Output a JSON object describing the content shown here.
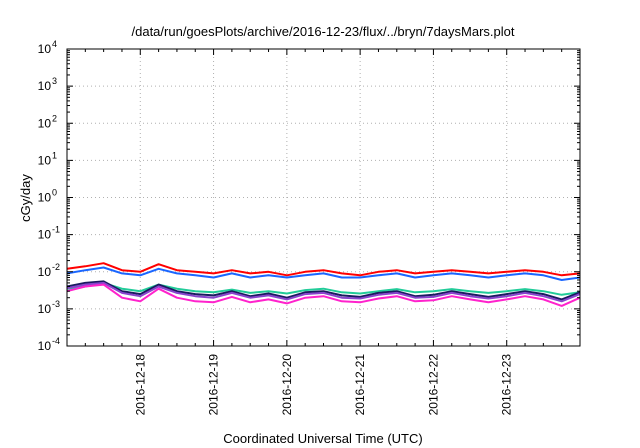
{
  "chart_data": {
    "type": "line",
    "title": "/data/run/goesPlots/archive/2016-12-23/flux/../bryn/7daysMars.plot",
    "xlabel": "Coordinated Universal Time (UTC)",
    "ylabel": "cGy/day",
    "yscale": "log",
    "ylim": [
      0.0001,
      10000
    ],
    "y_ticks": [
      {
        "base": "10",
        "exp": "4"
      },
      {
        "base": "10",
        "exp": "3"
      },
      {
        "base": "10",
        "exp": "2"
      },
      {
        "base": "10",
        "exp": "1"
      },
      {
        "base": "10",
        "exp": "0"
      },
      {
        "base": "10",
        "exp": "-1"
      },
      {
        "base": "10",
        "exp": "-2"
      },
      {
        "base": "10",
        "exp": "-3"
      },
      {
        "base": "10",
        "exp": "-4"
      }
    ],
    "xlim": [
      "2016-12-17 00:00",
      "2016-12-24 00:00"
    ],
    "x_ticks": [
      "2016-12-18",
      "2016-12-19",
      "2016-12-20",
      "2016-12-21",
      "2016-12-22",
      "2016-12-23"
    ],
    "grid": true,
    "legend": "none",
    "x": [
      "2016-12-17 00:00",
      "2016-12-17 06:00",
      "2016-12-17 12:00",
      "2016-12-17 18:00",
      "2016-12-18 00:00",
      "2016-12-18 06:00",
      "2016-12-18 12:00",
      "2016-12-18 18:00",
      "2016-12-19 00:00",
      "2016-12-19 06:00",
      "2016-12-19 12:00",
      "2016-12-19 18:00",
      "2016-12-20 00:00",
      "2016-12-20 06:00",
      "2016-12-20 12:00",
      "2016-12-20 18:00",
      "2016-12-21 00:00",
      "2016-12-21 06:00",
      "2016-12-21 12:00",
      "2016-12-21 18:00",
      "2016-12-22 00:00",
      "2016-12-22 06:00",
      "2016-12-22 12:00",
      "2016-12-22 18:00",
      "2016-12-23 00:00",
      "2016-12-23 06:00",
      "2016-12-23 12:00",
      "2016-12-23 18:00",
      "2016-12-24 00:00"
    ],
    "series": [
      {
        "color": "#ff0000",
        "values": [
          0.012,
          0.014,
          0.017,
          0.011,
          0.01,
          0.016,
          0.011,
          0.01,
          0.009,
          0.011,
          0.009,
          0.01,
          0.008,
          0.01,
          0.011,
          0.009,
          0.008,
          0.01,
          0.011,
          0.009,
          0.01,
          0.011,
          0.01,
          0.009,
          0.01,
          0.011,
          0.01,
          0.008,
          0.009
        ]
      },
      {
        "color": "#1a66ff",
        "values": [
          0.009,
          0.011,
          0.013,
          0.009,
          0.008,
          0.012,
          0.009,
          0.008,
          0.007,
          0.009,
          0.007,
          0.008,
          0.007,
          0.008,
          0.009,
          0.007,
          0.007,
          0.008,
          0.009,
          0.007,
          0.008,
          0.009,
          0.008,
          0.007,
          0.008,
          0.009,
          0.008,
          0.006,
          0.007
        ]
      },
      {
        "color": "#22cc99",
        "values": [
          0.0035,
          0.004,
          0.005,
          0.0035,
          0.003,
          0.0045,
          0.0035,
          0.003,
          0.0028,
          0.0033,
          0.0027,
          0.003,
          0.0026,
          0.0032,
          0.0035,
          0.0028,
          0.0026,
          0.003,
          0.0034,
          0.0028,
          0.003,
          0.0034,
          0.003,
          0.0027,
          0.003,
          0.0034,
          0.003,
          0.0024,
          0.0028
        ]
      },
      {
        "color": "#1a1a60",
        "values": [
          0.004,
          0.005,
          0.0055,
          0.003,
          0.0025,
          0.0045,
          0.003,
          0.0025,
          0.0023,
          0.003,
          0.0022,
          0.0026,
          0.002,
          0.0028,
          0.003,
          0.0023,
          0.0021,
          0.0027,
          0.003,
          0.0022,
          0.0024,
          0.003,
          0.0025,
          0.0021,
          0.0025,
          0.003,
          0.0025,
          0.0018,
          0.0028
        ]
      },
      {
        "color": "#8844cc",
        "values": [
          0.0036,
          0.0045,
          0.005,
          0.0027,
          0.0022,
          0.004,
          0.0027,
          0.0022,
          0.002,
          0.0027,
          0.002,
          0.0023,
          0.0018,
          0.0025,
          0.0027,
          0.002,
          0.0019,
          0.0024,
          0.0027,
          0.002,
          0.0021,
          0.0027,
          0.0022,
          0.0019,
          0.0022,
          0.0027,
          0.0022,
          0.0016,
          0.0025
        ]
      },
      {
        "color": "#ff22cc",
        "values": [
          0.003,
          0.004,
          0.0045,
          0.002,
          0.0016,
          0.0035,
          0.002,
          0.0016,
          0.0015,
          0.0021,
          0.0015,
          0.0018,
          0.0014,
          0.002,
          0.0022,
          0.0016,
          0.0015,
          0.0019,
          0.0022,
          0.0016,
          0.0017,
          0.0022,
          0.0018,
          0.0015,
          0.0018,
          0.0022,
          0.0018,
          0.0012,
          0.002
        ]
      }
    ]
  }
}
